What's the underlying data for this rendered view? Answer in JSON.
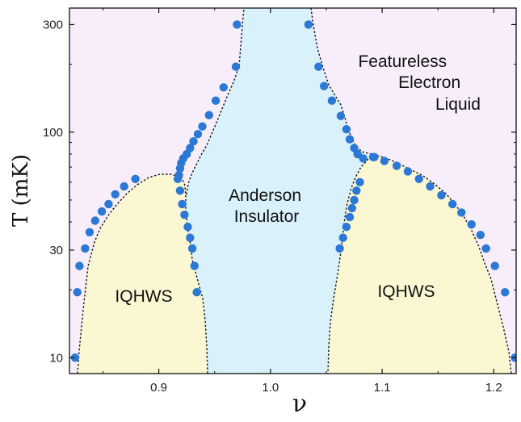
{
  "chart_data": {
    "type": "scatter",
    "xlabel": "ν",
    "ylabel": "T (mK)",
    "x_scale": "linear",
    "y_scale": "log",
    "xlim": [
      0.82,
      1.22
    ],
    "ylim": [
      8.5,
      355
    ],
    "x_ticks": [
      0.9,
      1.0,
      1.1,
      1.2
    ],
    "x_tick_labels": [
      "0.9",
      "1.0",
      "1.1",
      "1.2"
    ],
    "y_ticks": [
      10,
      30,
      100,
      300
    ],
    "y_tick_labels": [
      "10",
      "30",
      "100",
      "300"
    ],
    "grid": false,
    "legend": "none",
    "regions": [
      {
        "label": "IQHWS",
        "color": "#faf7d2"
      },
      {
        "label": "Anderson\nInsulator",
        "color": "#d9f1fb"
      },
      {
        "label": "IQHWS",
        "color": "#faf7d2"
      },
      {
        "label": "Featureless\nElectron\nLiquid",
        "color": "#f8edfb"
      }
    ],
    "series": [
      {
        "marker_color": "#2b78d6",
        "x": [
          0.825,
          0.827,
          0.829,
          0.834,
          0.838,
          0.843,
          0.849,
          0.855,
          0.861,
          0.869,
          0.879,
          0.919,
          0.921,
          0.923,
          0.926,
          0.928,
          0.93,
          0.932,
          0.934,
          0.917,
          0.918,
          0.919,
          0.92,
          0.922,
          0.925,
          0.928,
          0.931,
          0.935,
          0.939,
          0.945,
          0.951,
          0.958,
          0.969,
          0.97
        ],
        "y": [
          10,
          19.5,
          25.5,
          30.5,
          36,
          40.5,
          44.5,
          48,
          53,
          57.5,
          62,
          55,
          48,
          43,
          38,
          34,
          30.5,
          25.5,
          19.5,
          62,
          64.5,
          69,
          73,
          76.5,
          80,
          85,
          91,
          98,
          106,
          119,
          138,
          158,
          195,
          300
        ]
      },
      {
        "marker_color": "#2b78d6",
        "x": [
          1.034,
          1.043,
          1.048,
          1.055,
          1.063,
          1.068,
          1.071,
          1.075,
          1.078,
          1.083,
          1.092,
          1.062,
          1.065,
          1.068,
          1.071,
          1.073,
          1.075,
          1.077,
          1.08,
          1.093,
          1.102,
          1.113,
          1.123,
          1.133,
          1.143,
          1.153,
          1.163,
          1.171,
          1.18,
          1.188,
          1.193,
          1.201,
          1.21,
          1.219
        ],
        "y": [
          300,
          195,
          160,
          138,
          118,
          103,
          93,
          85,
          80,
          76.5,
          77.5,
          30.5,
          34,
          38,
          42,
          46,
          50,
          55,
          60,
          77.5,
          74.5,
          71,
          67,
          62,
          57.5,
          52.5,
          48,
          44,
          39,
          35,
          30.5,
          25.5,
          19.5,
          10
        ]
      }
    ]
  }
}
